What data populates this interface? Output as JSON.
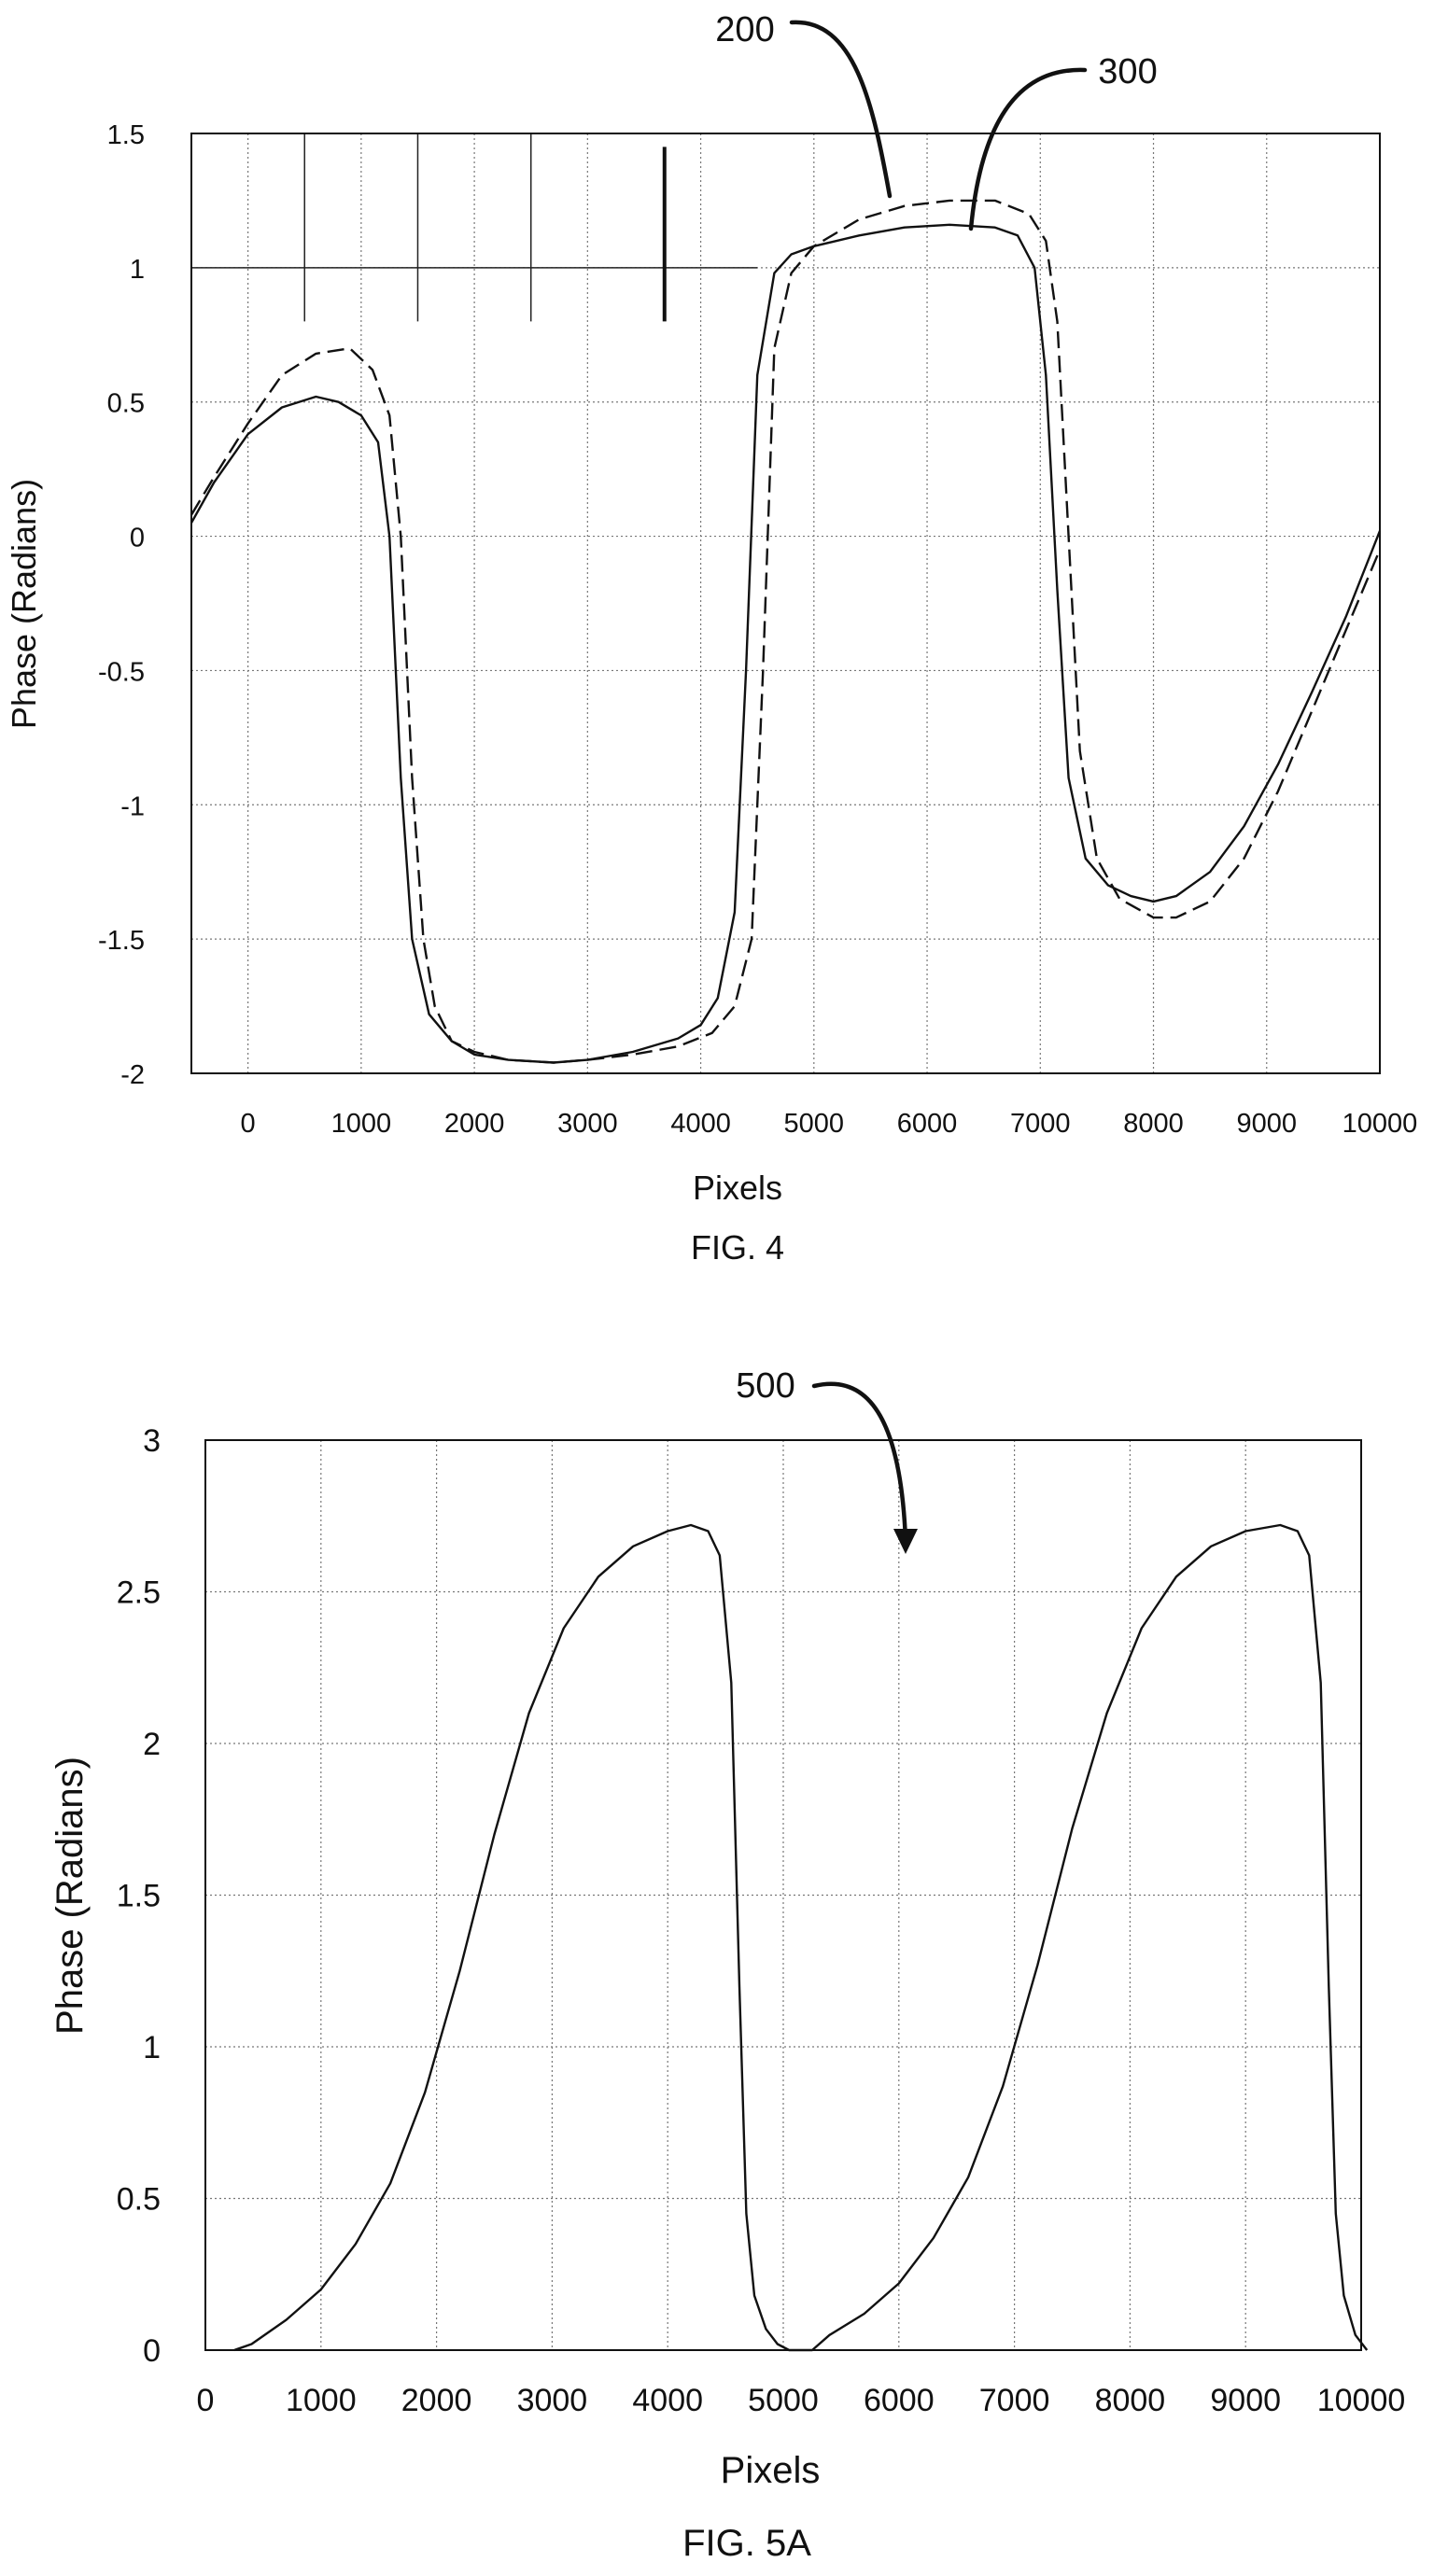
{
  "chart_data": [
    {
      "type": "line",
      "caption": "FIG. 4",
      "xlabel": "Pixels",
      "ylabel": "Phase (Radians)",
      "xlim": [
        -500,
        10000
      ],
      "ylim": [
        -2,
        1.5
      ],
      "x_ticks": [
        0,
        1000,
        2000,
        3000,
        4000,
        5000,
        6000,
        7000,
        8000,
        9000,
        10000
      ],
      "y_ticks": [
        1.5,
        1,
        0.5,
        0,
        -0.5,
        -1,
        -1.5,
        -2
      ],
      "grid": true,
      "reference_labels": [
        "200",
        "300"
      ],
      "series": [
        {
          "style": "dashed",
          "x": [
            -500,
            -300,
            0,
            300,
            600,
            900,
            1100,
            1250,
            1350,
            1450,
            1550,
            1650,
            1800,
            2000,
            2300,
            2700,
            3000,
            3400,
            3800,
            4100,
            4300,
            4450,
            4550,
            4650,
            4800,
            5000,
            5400,
            5800,
            6200,
            6600,
            6900,
            7050,
            7150,
            7250,
            7350,
            7500,
            7700,
            8000,
            8200,
            8500,
            8800,
            9100,
            9400,
            9700,
            10000
          ],
          "y": [
            0.08,
            0.22,
            0.42,
            0.6,
            0.68,
            0.7,
            0.62,
            0.45,
            0.0,
            -0.9,
            -1.5,
            -1.75,
            -1.88,
            -1.92,
            -1.95,
            -1.96,
            -1.95,
            -1.93,
            -1.9,
            -1.85,
            -1.75,
            -1.5,
            -0.5,
            0.7,
            0.98,
            1.08,
            1.18,
            1.23,
            1.25,
            1.25,
            1.2,
            1.1,
            0.8,
            0.0,
            -0.8,
            -1.2,
            -1.35,
            -1.42,
            -1.42,
            -1.36,
            -1.2,
            -0.95,
            -0.65,
            -0.35,
            -0.05
          ]
        },
        {
          "style": "solid",
          "x": [
            -500,
            -300,
            0,
            300,
            600,
            800,
            1000,
            1150,
            1250,
            1350,
            1450,
            1600,
            1800,
            2000,
            2300,
            2700,
            3000,
            3400,
            3800,
            4000,
            4150,
            4300,
            4400,
            4500,
            4650,
            4800,
            5000,
            5400,
            5800,
            6200,
            6600,
            6800,
            6950,
            7050,
            7150,
            7250,
            7400,
            7600,
            7800,
            8000,
            8200,
            8500,
            8800,
            9100,
            9400,
            9700,
            10000
          ],
          "y": [
            0.05,
            0.2,
            0.38,
            0.48,
            0.52,
            0.5,
            0.45,
            0.35,
            0.0,
            -0.9,
            -1.5,
            -1.78,
            -1.88,
            -1.93,
            -1.95,
            -1.96,
            -1.95,
            -1.92,
            -1.87,
            -1.82,
            -1.72,
            -1.4,
            -0.5,
            0.6,
            0.98,
            1.05,
            1.08,
            1.12,
            1.15,
            1.16,
            1.15,
            1.12,
            1.0,
            0.6,
            -0.2,
            -0.9,
            -1.2,
            -1.3,
            -1.34,
            -1.36,
            -1.34,
            -1.25,
            -1.08,
            -0.85,
            -0.58,
            -0.3,
            0.02
          ]
        }
      ]
    },
    {
      "type": "line",
      "caption": "FIG. 5A",
      "xlabel": "Pixels",
      "ylabel": "Phase (Radians)",
      "xlim": [
        0,
        10000
      ],
      "ylim": [
        0,
        3
      ],
      "x_ticks": [
        0,
        1000,
        2000,
        3000,
        4000,
        5000,
        6000,
        7000,
        8000,
        9000,
        10000
      ],
      "y_ticks": [
        3,
        2.5,
        2,
        1.5,
        1,
        0.5,
        0
      ],
      "grid": true,
      "reference_labels": [
        "500"
      ],
      "series": [
        {
          "style": "solid",
          "x": [
            250,
            400,
            700,
            1000,
            1300,
            1600,
            1900,
            2200,
            2500,
            2800,
            3100,
            3400,
            3700,
            4000,
            4200,
            4350,
            4450,
            4550,
            4620,
            4680,
            4750,
            4850,
            4950,
            5050,
            5150,
            5250,
            5400,
            5700,
            6000,
            6300,
            6600,
            6900,
            7200,
            7500,
            7800,
            8100,
            8400,
            8700,
            9000,
            9300,
            9450,
            9550,
            9650,
            9720,
            9780,
            9850,
            9950,
            10050
          ],
          "y": [
            0.0,
            0.02,
            0.1,
            0.2,
            0.35,
            0.55,
            0.85,
            1.25,
            1.7,
            2.1,
            2.38,
            2.55,
            2.65,
            2.7,
            2.72,
            2.7,
            2.62,
            2.2,
            1.2,
            0.45,
            0.18,
            0.07,
            0.02,
            0.0,
            0.0,
            0.0,
            0.05,
            0.12,
            0.22,
            0.37,
            0.57,
            0.87,
            1.27,
            1.72,
            2.1,
            2.38,
            2.55,
            2.65,
            2.7,
            2.72,
            2.7,
            2.62,
            2.2,
            1.2,
            0.45,
            0.18,
            0.05,
            0.0
          ]
        }
      ]
    }
  ]
}
